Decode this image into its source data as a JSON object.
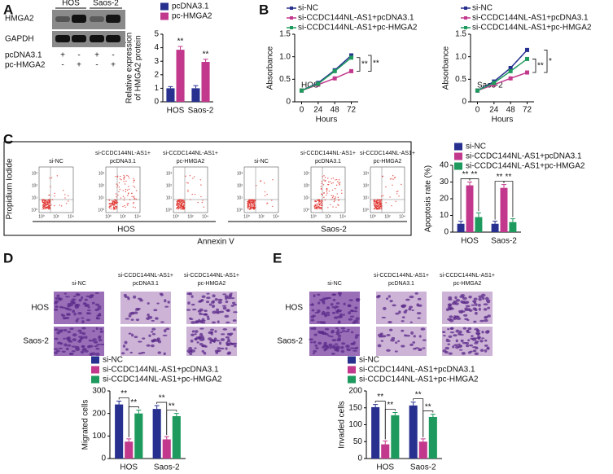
{
  "panel_labels": [
    "A",
    "B",
    "C",
    "D",
    "E"
  ],
  "blot": {
    "cell_lines": [
      "HOS",
      "Saos-2"
    ],
    "proteins": [
      "HMGA2",
      "GAPDH"
    ],
    "rows": [
      {
        "label": "pcDNA3.1",
        "signs": [
          "+",
          "-",
          "+",
          "-"
        ]
      },
      {
        "label": "pc-HMGA2",
        "signs": [
          "-",
          "+",
          "-",
          "+"
        ]
      }
    ]
  },
  "flow": {
    "groups": [
      [
        "si-NC"
      ],
      [
        "si-CCDC144NL-AS1+",
        "pcDNA3.1"
      ],
      [
        "si-CCDC144NL-AS1+",
        "pc-HMGA2"
      ]
    ],
    "cell_lines": [
      "HOS",
      "Saos-2"
    ],
    "ylabel": "Propidium Iodide",
    "xlabel": "Annexin V",
    "ticks": [
      "10⁰",
      "10¹",
      "10²",
      "10³",
      "10⁴",
      "10⁵"
    ]
  },
  "migration": {
    "groups": [
      [
        "si-NC"
      ],
      [
        "si-CCDC144NL-AS1+",
        "pcDNA3.1"
      ],
      [
        "si-CCDC144NL-AS1+",
        "pc-HMGA2"
      ]
    ],
    "rows": [
      "HOS",
      "Saos-2"
    ]
  },
  "invasion": {
    "groups": [
      [
        "si-NC"
      ],
      [
        "si-CCDC144NL-AS1+",
        "pcDNA3.1"
      ],
      [
        "si-CCDC144NL-AS1+",
        "pc-HMGA2"
      ]
    ],
    "rows": [
      "HOS",
      "Saos-2"
    ]
  },
  "chart_data": [
    {
      "type": "bar",
      "ylabel": [
        "Relative expression",
        "of HMGA2 protein"
      ],
      "categories": [
        "HOS",
        "Saos-2"
      ],
      "series": [
        {
          "name": "pcDNA3.1",
          "color": "#27308f",
          "values": [
            1,
            1
          ],
          "errors": [
            0.12,
            0.2
          ]
        },
        {
          "name": "pc-HMGA2",
          "color": "#c2388c",
          "values": [
            3.85,
            2.95
          ],
          "errors": [
            0.25,
            0.2
          ]
        }
      ],
      "ylim": [
        0,
        5
      ],
      "yticks": [
        0,
        1,
        2,
        3,
        4,
        5
      ],
      "significance": [
        "**",
        "**"
      ]
    },
    {
      "type": "line",
      "ylabel": "Absorbance",
      "xlabel": "Hours",
      "cell_line": "HOS",
      "x": [
        0,
        24,
        48,
        72
      ],
      "series": [
        {
          "name": "si-NC",
          "color": "#27308f",
          "values": [
            0.25,
            0.42,
            0.7,
            1.03
          ]
        },
        {
          "name": "si-CCDC144NL-AS1+pcDNA3.1",
          "color": "#c2388c",
          "values": [
            0.25,
            0.38,
            0.52,
            0.68
          ]
        },
        {
          "name": "si-CCDC144NL-AS1+pc-HMGA2",
          "color": "#1f9a5e",
          "values": [
            0.25,
            0.4,
            0.68,
            0.98
          ]
        }
      ],
      "xlim": [
        -10,
        82
      ],
      "xticks": [
        0,
        24,
        48,
        72
      ],
      "ylim": [
        0,
        1.5
      ],
      "yticks": [
        0,
        0.5,
        {
          "value": 1,
          "label": "1.0"
        },
        1.5
      ],
      "significance": [
        "**",
        "**"
      ]
    },
    {
      "type": "line",
      "ylabel": "Absorbance",
      "xlabel": "Hours",
      "cell_line": "Saos-2",
      "x": [
        0,
        24,
        48,
        72
      ],
      "series": [
        {
          "name": "si-NC",
          "color": "#27308f",
          "values": [
            0.25,
            0.45,
            0.75,
            1.15
          ]
        },
        {
          "name": "si-CCDC144NL-AS1+pcDNA3.1",
          "color": "#c2388c",
          "values": [
            0.25,
            0.38,
            0.52,
            0.65
          ]
        },
        {
          "name": "si-CCDC144NL-AS1+pc-HMGA2",
          "color": "#1f9a5e",
          "values": [
            0.25,
            0.42,
            0.68,
            0.95
          ]
        }
      ],
      "xlim": [
        -10,
        82
      ],
      "xticks": [
        0,
        24,
        48,
        72
      ],
      "ylim": [
        0,
        1.5
      ],
      "yticks": [
        0,
        0.5,
        {
          "value": 1,
          "label": "1.0"
        },
        1.5
      ],
      "significance": [
        "**",
        "*"
      ]
    },
    {
      "type": "bar",
      "ylabel": "Apoptosis rate (%)",
      "categories": [
        "HOS",
        "Saos-2"
      ],
      "series": [
        {
          "name": "si-NC",
          "color": "#27308f",
          "values": [
            5,
            5
          ],
          "errors": [
            1.5,
            1.5
          ]
        },
        {
          "name": "si-CCDC144NL-AS1+pcDNA3.1",
          "color": "#c2388c",
          "values": [
            28,
            26.5
          ],
          "errors": [
            2,
            2
          ]
        },
        {
          "name": "si-CCDC144NL-AS1+pc-HMGA2",
          "color": "#1f9a5e",
          "values": [
            9,
            6
          ],
          "errors": [
            2.5,
            2
          ]
        }
      ],
      "ylim": [
        0,
        40
      ],
      "yticks": [
        0,
        10,
        20,
        30,
        40
      ],
      "significance": [
        "**",
        "**",
        "**",
        "**"
      ]
    },
    {
      "type": "bar",
      "ylabel": "Migrated cells",
      "categories": [
        "HOS",
        "Saos-2"
      ],
      "series": [
        {
          "name": "si-NC",
          "color": "#27308f",
          "values": [
            240,
            220
          ],
          "errors": [
            15,
            15
          ]
        },
        {
          "name": "si-CCDC144NL-AS1+pcDNA3.1",
          "color": "#c2388c",
          "values": [
            75,
            85
          ],
          "errors": [
            12,
            12
          ]
        },
        {
          "name": "si-CCDC144NL-AS1+pc-HMGA2",
          "color": "#1f9a5e",
          "values": [
            200,
            188
          ],
          "errors": [
            15,
            12
          ]
        }
      ],
      "ylim": [
        0,
        300
      ],
      "yticks": [
        0,
        100,
        200,
        300
      ],
      "significance": [
        "**",
        "**",
        "**",
        "**"
      ]
    },
    {
      "type": "bar",
      "ylabel": "Invaded cells",
      "categories": [
        "HOS",
        "Saos-2"
      ],
      "series": [
        {
          "name": "si-NC",
          "color": "#27308f",
          "values": [
            152,
            157
          ],
          "errors": [
            8,
            10
          ]
        },
        {
          "name": "si-CCDC144NL-AS1+pcDNA3.1",
          "color": "#c2388c",
          "values": [
            42,
            50
          ],
          "errors": [
            10,
            8
          ]
        },
        {
          "name": "si-CCDC144NL-AS1+pc-HMGA2",
          "color": "#1f9a5e",
          "values": [
            128,
            123
          ],
          "errors": [
            8,
            8
          ]
        }
      ],
      "ylim": [
        0,
        200
      ],
      "yticks": [
        0,
        50,
        100,
        150,
        200
      ],
      "significance": [
        "**",
        "**",
        "**",
        "**"
      ]
    }
  ]
}
